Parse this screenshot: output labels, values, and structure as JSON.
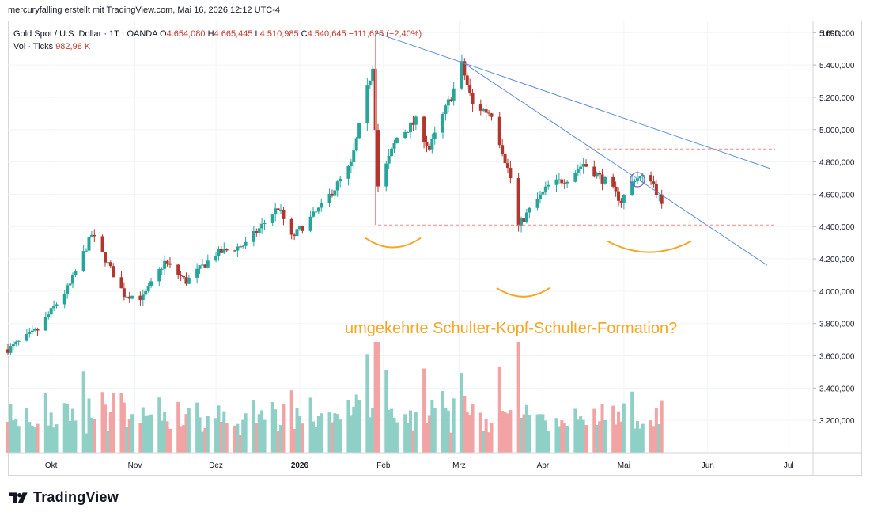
{
  "header": {
    "attribution": "mercuryfalling erstellt mit TradingView.com, Mai 16, 2026 12:12 UTC-4"
  },
  "legend": {
    "symbol": "Gold Spot / U.S. Dollar · 1T · OANDA",
    "open_label": "O",
    "open": "4.654,080",
    "high_label": "H",
    "high": "4.665,445",
    "low_label": "L",
    "low": "4.510,985",
    "close_label": "C",
    "close": "4.540,645",
    "change": "−111,625 (−2,40%)",
    "vol_label": "Vol · Ticks",
    "vol_value": "982,98 K"
  },
  "colors": {
    "up": "#26a69a",
    "down": "#b2352e",
    "vol_up": "#8fd0c6",
    "vol_down": "#f2a3a3",
    "trendline": "#5b8dd9",
    "dashed": "#f08a8a",
    "pattern": "#f5a623"
  },
  "logo": {
    "text": "TradingView",
    "icon": "tradingview-logo-icon"
  },
  "chart_data": {
    "type": "candlestick",
    "currency": "USD",
    "y_axis": {
      "ylim": [
        3000,
        5670
      ],
      "ticks": [
        "5.600,000",
        "5.400,000",
        "5.200,000",
        "5.000,000",
        "4.800,000",
        "4.600,000",
        "4.400,000",
        "4.200,000",
        "4.000,000",
        "3.800,000",
        "3.600,000",
        "3.400,000",
        "3.200,000"
      ],
      "tick_values": [
        5600,
        5400,
        5200,
        5000,
        4800,
        4600,
        4400,
        4200,
        4000,
        3800,
        3600,
        3400,
        3200
      ]
    },
    "x_axis": {
      "labels": [
        {
          "text": "Okt",
          "date": "2025-10-01",
          "bold": false
        },
        {
          "text": "Nov",
          "date": "2025-11-01",
          "bold": false
        },
        {
          "text": "Dez",
          "date": "2025-12-01",
          "bold": false
        },
        {
          "text": "2026",
          "date": "2026-01-01",
          "bold": true
        },
        {
          "text": "Feb",
          "date": "2026-02-01",
          "bold": false
        },
        {
          "text": "Mrz",
          "date": "2026-03-01",
          "bold": false
        },
        {
          "text": "Apr",
          "date": "2026-04-01",
          "bold": false
        },
        {
          "text": "Mai",
          "date": "2026-05-01",
          "bold": false
        },
        {
          "text": "Jun",
          "date": "2026-06-01",
          "bold": false
        },
        {
          "text": "Jul",
          "date": "2026-07-01",
          "bold": false
        }
      ]
    },
    "series_closes": [
      {
        "date": "2025-09-15",
        "close": 3640
      },
      {
        "date": "2025-09-26",
        "close": 3760
      },
      {
        "date": "2025-10-08",
        "close": 4040
      },
      {
        "date": "2025-10-16",
        "close": 4350
      },
      {
        "date": "2025-10-20",
        "close": 4230
      },
      {
        "date": "2025-10-28",
        "close": 3980
      },
      {
        "date": "2025-11-04",
        "close": 3960
      },
      {
        "date": "2025-11-12",
        "close": 4180
      },
      {
        "date": "2025-11-20",
        "close": 4060
      },
      {
        "date": "2025-12-01",
        "close": 4230
      },
      {
        "date": "2025-12-12",
        "close": 4290
      },
      {
        "date": "2025-12-24",
        "close": 4520
      },
      {
        "date": "2025-12-29",
        "close": 4330
      },
      {
        "date": "2026-01-09",
        "close": 4520
      },
      {
        "date": "2026-01-20",
        "close": 4780
      },
      {
        "date": "2026-01-28",
        "close": 5400
      },
      {
        "date": "2026-01-30",
        "close": 4650
      },
      {
        "date": "2026-02-06",
        "close": 4950
      },
      {
        "date": "2026-02-13",
        "close": 5050
      },
      {
        "date": "2026-02-18",
        "close": 4880
      },
      {
        "date": "2026-02-27",
        "close": 5250
      },
      {
        "date": "2026-03-02",
        "close": 5400
      },
      {
        "date": "2026-03-06",
        "close": 5150
      },
      {
        "date": "2026-03-13",
        "close": 5100
      },
      {
        "date": "2026-03-20",
        "close": 4700
      },
      {
        "date": "2026-03-23",
        "close": 4400
      },
      {
        "date": "2026-03-27",
        "close": 4500
      },
      {
        "date": "2026-04-03",
        "close": 4650
      },
      {
        "date": "2026-04-10",
        "close": 4700
      },
      {
        "date": "2026-04-16",
        "close": 4790
      },
      {
        "date": "2026-04-24",
        "close": 4680
      },
      {
        "date": "2026-04-30",
        "close": 4560
      },
      {
        "date": "2026-05-05",
        "close": 4700
      },
      {
        "date": "2026-05-11",
        "close": 4700
      },
      {
        "date": "2026-05-15",
        "close": 4540
      }
    ],
    "annotations": [
      {
        "type": "text",
        "text": "umgekehrte Schulter-Kopf-Schulter-Formation?"
      },
      {
        "type": "trendline",
        "from": {
          "date": "2026-01-29",
          "value": 5600
        },
        "to": {
          "date": "2026-06-24",
          "value": 4760
        }
      },
      {
        "type": "trendline",
        "from": {
          "date": "2026-03-02",
          "value": 5420
        },
        "to": {
          "date": "2026-06-23",
          "value": 4160
        }
      },
      {
        "type": "horizontal-dashed",
        "value": 4880,
        "from": "2026-04-17"
      },
      {
        "type": "horizontal-dashed",
        "value": 4410,
        "from": "2026-01-30"
      },
      {
        "type": "shoulder-arc",
        "label": "left-shoulder"
      },
      {
        "type": "head-arc",
        "label": "head"
      },
      {
        "type": "shoulder-arc",
        "label": "right-shoulder"
      }
    ]
  }
}
